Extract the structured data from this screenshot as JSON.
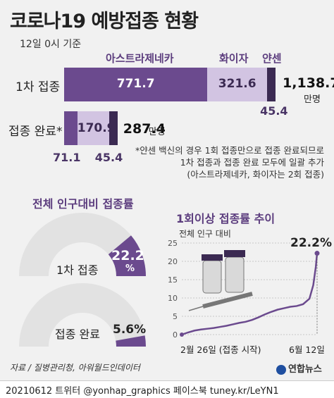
{
  "title": "코로나19 예방접종 현황",
  "date": "12일 0시 기준",
  "colors": {
    "astrazeneca": "#6b4a8e",
    "pfizer": "#d2c4e2",
    "janssen": "#3b2a52",
    "accent": "#5c3d7e",
    "gauge_bg": "#e2e2e2"
  },
  "vaccine_headers": {
    "astrazeneca": "아스트라제네카",
    "pfizer": "화이자",
    "janssen": "얀센"
  },
  "unit": "만명",
  "note": [
    "*얀센 백신의 경우 1회 접종만으로 접종 완료되므로",
    "1차 접종과 접종 완료 모두에 일괄 추가",
    "(아스트라제네카, 화이자는 2회 접종)"
  ],
  "chart_data": [
    {
      "type": "bar",
      "orientation": "horizontal",
      "stacked": true,
      "unit": "만명",
      "categories": [
        "1차 접종",
        "접종 완료*"
      ],
      "series": [
        {
          "name": "아스트라제네카",
          "values": [
            771.7,
            71.1
          ],
          "labels": [
            "771.7",
            "71.1"
          ]
        },
        {
          "name": "화이자",
          "values": [
            321.6,
            170.9
          ],
          "labels": [
            "321.6",
            "170.9"
          ]
        },
        {
          "name": "얀센",
          "values": [
            45.4,
            45.4
          ],
          "labels": [
            "45.4",
            "45.4"
          ]
        }
      ],
      "totals": [
        1138.7,
        287.4
      ],
      "total_labels": [
        "1,138.7",
        "287.4"
      ]
    },
    {
      "type": "pie",
      "title": "전체 인구대비 접종률",
      "gauges": [
        {
          "label": "1차 접종",
          "value": 22.2,
          "value_label": "22.2",
          "unit": "%"
        },
        {
          "label": "접종 완료",
          "value": 5.6,
          "value_label": "5.6%"
        }
      ]
    },
    {
      "type": "line",
      "title": "1회이상 접종률 추이",
      "ylabel": "전체 인구 대비",
      "ylim": [
        0,
        25
      ],
      "yticks": [
        "0",
        "5",
        "10",
        "15",
        "20",
        "25"
      ],
      "xlabels": {
        "start": "2월 26일 (접종 시작)",
        "end": "6월 12일"
      },
      "end_label": "22.2%",
      "x": [
        0,
        5,
        10,
        15,
        20,
        25,
        30,
        35,
        40,
        45,
        50,
        55,
        60,
        65,
        70,
        75,
        80,
        85,
        90,
        95,
        100,
        103,
        105,
        106
      ],
      "y": [
        0,
        0.6,
        1.1,
        1.4,
        1.6,
        1.8,
        2.1,
        2.4,
        2.8,
        3.2,
        3.5,
        4.0,
        4.7,
        5.5,
        6.2,
        6.8,
        7.2,
        7.6,
        7.8,
        8.3,
        9.8,
        13.5,
        18.5,
        22.2
      ]
    }
  ],
  "source": "자료 / 질병관리청, 아워월드인데이터",
  "logo": "연합뉴스",
  "footer": "20210612 트위터 @yonhap_graphics  페이스북 tuney.kr/LeYN1"
}
